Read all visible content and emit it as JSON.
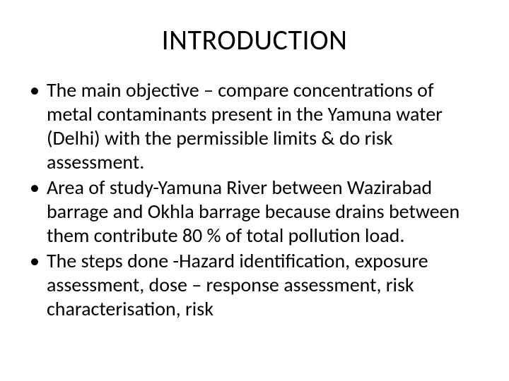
{
  "slide": {
    "title": "INTRODUCTION",
    "bullets": [
      "The main objective – compare concentrations of  metal contaminants present in the Yamuna water (Delhi) with the permissible limits & do risk assessment.",
      "Area of study-Yamuna River between Wazirabad barrage and Okhla barrage because drains between them contribute 80 % of total pollution load.",
      "The steps done -Hazard identification, exposure assessment, dose – response assessment, risk characterisation, risk"
    ]
  },
  "style": {
    "background_color": "#ffffff",
    "text_color": "#000000",
    "title_fontsize": 40,
    "body_fontsize": 28,
    "font_family": "Calibri",
    "bullet_marker": "•"
  }
}
